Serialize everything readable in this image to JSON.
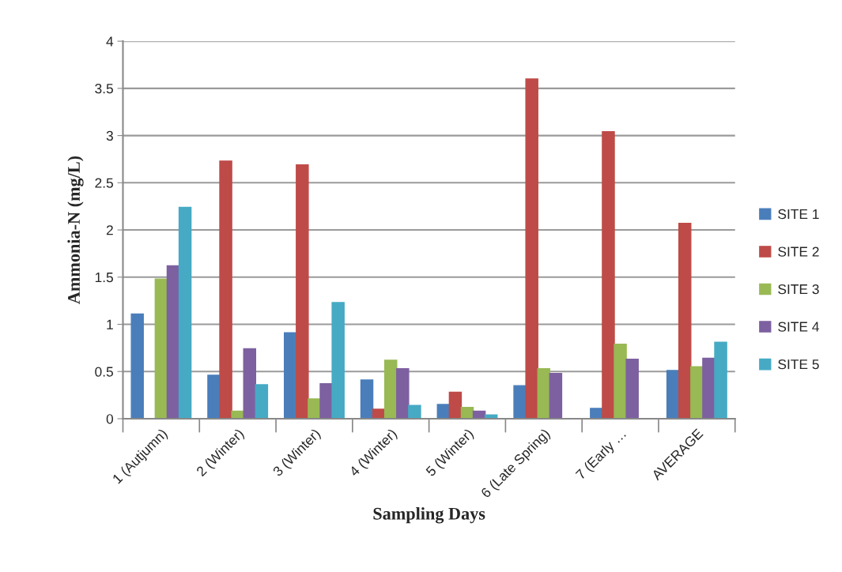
{
  "chart_data": {
    "type": "bar",
    "xlabel": "Sampling Days",
    "ylabel": "Ammonia-N (mg/L)",
    "categories": [
      "1 (Autjumn)",
      "2 (Winter)",
      "3 (Winter)",
      "4 (Winter)",
      "5 (Winter)",
      "6 (Late Spring)",
      "7 (Early …",
      "AVERAGE"
    ],
    "series": [
      {
        "name": "SITE 1",
        "color": "#4a7ebb",
        "values": [
          1.11,
          0.46,
          0.91,
          0.41,
          0.15,
          0.35,
          0.11,
          0.51
        ]
      },
      {
        "name": "SITE 2",
        "color": "#be4b48",
        "values": [
          0,
          2.73,
          2.69,
          0.1,
          0.28,
          3.6,
          3.04,
          2.07
        ]
      },
      {
        "name": "SITE 3",
        "color": "#98b954",
        "values": [
          1.48,
          0.08,
          0.21,
          0.62,
          0.12,
          0.53,
          0.79,
          0.55
        ]
      },
      {
        "name": "SITE 4",
        "color": "#7d60a0",
        "values": [
          1.62,
          0.74,
          0.37,
          0.53,
          0.08,
          0.48,
          0.63,
          0.64
        ]
      },
      {
        "name": "SITE 5",
        "color": "#46aac5",
        "values": [
          2.24,
          0.36,
          1.23,
          0.14,
          0.04,
          0,
          0,
          0.81
        ]
      }
    ],
    "ylim": [
      0,
      4
    ],
    "yticks": [
      0,
      0.5,
      1,
      1.5,
      2,
      2.5,
      3,
      3.5,
      4
    ],
    "grid": "y",
    "legend": "right"
  }
}
